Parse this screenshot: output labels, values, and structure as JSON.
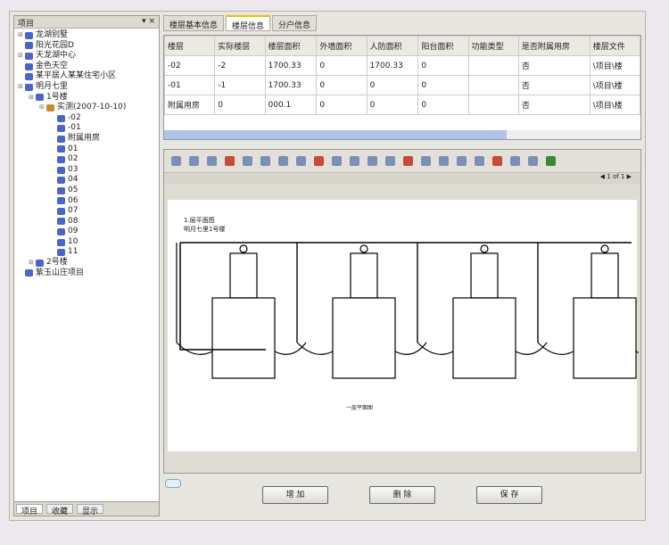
{
  "left_panel": {
    "title": "项目",
    "tree": [
      {
        "label": "龙湖别墅",
        "level": 0,
        "exp": "+"
      },
      {
        "label": "阳光花园D",
        "level": 0,
        "exp": ""
      },
      {
        "label": "天龙湖中心",
        "level": 0,
        "exp": "+"
      },
      {
        "label": "金色天空",
        "level": 0,
        "exp": ""
      },
      {
        "label": "某平居人某某住宅小区",
        "level": 0,
        "exp": ""
      },
      {
        "label": "明月七里",
        "level": 0,
        "exp": "-"
      },
      {
        "label": "1号楼",
        "level": 1,
        "exp": "-"
      },
      {
        "label": "实测(2007-10-10)",
        "level": 2,
        "exp": "-",
        "lock": true
      },
      {
        "label": "-02",
        "level": 3
      },
      {
        "label": "-01",
        "level": 3
      },
      {
        "label": "附属用房",
        "level": 3
      },
      {
        "label": "01",
        "level": 3
      },
      {
        "label": "02",
        "level": 3
      },
      {
        "label": "03",
        "level": 3
      },
      {
        "label": "04",
        "level": 3
      },
      {
        "label": "05",
        "level": 3
      },
      {
        "label": "06",
        "level": 3
      },
      {
        "label": "07",
        "level": 3
      },
      {
        "label": "08",
        "level": 3
      },
      {
        "label": "09",
        "level": 3
      },
      {
        "label": "10",
        "level": 3
      },
      {
        "label": "11",
        "level": 3
      },
      {
        "label": "2号楼",
        "level": 1,
        "exp": "+"
      },
      {
        "label": "紫玉山庄项目",
        "level": 0,
        "exp": ""
      }
    ],
    "bottom_tabs": [
      "项目",
      "收藏",
      "显示"
    ]
  },
  "tabs": [
    "楼层基本信息",
    "楼层信息",
    "分户信息"
  ],
  "active_tab": 1,
  "table": {
    "columns": [
      "楼层",
      "实际楼层",
      "楼层面积",
      "外墙面积",
      "人防面积",
      "阳台面积",
      "功能类型",
      "是否附属用房",
      "楼层文件"
    ],
    "rows": [
      [
        "-02",
        "-2",
        "1700.33",
        "0",
        "1700.33",
        "0",
        "",
        "否",
        "\\项目\\楼"
      ],
      [
        "-01",
        "-1",
        "1700.33",
        "0",
        "0",
        "0",
        "",
        "否",
        "\\项目\\楼"
      ],
      [
        "附属用房",
        "0",
        "000.1",
        "0",
        "0",
        "0",
        "",
        "否",
        "\\项目\\楼"
      ]
    ]
  },
  "drawing": {
    "title": "1.层平面图",
    "subtitle": "明月七里1号楼",
    "caption": "一层平面图"
  },
  "buttons": {
    "add": "增 加",
    "delete": "删 除",
    "save": "保 存"
  }
}
